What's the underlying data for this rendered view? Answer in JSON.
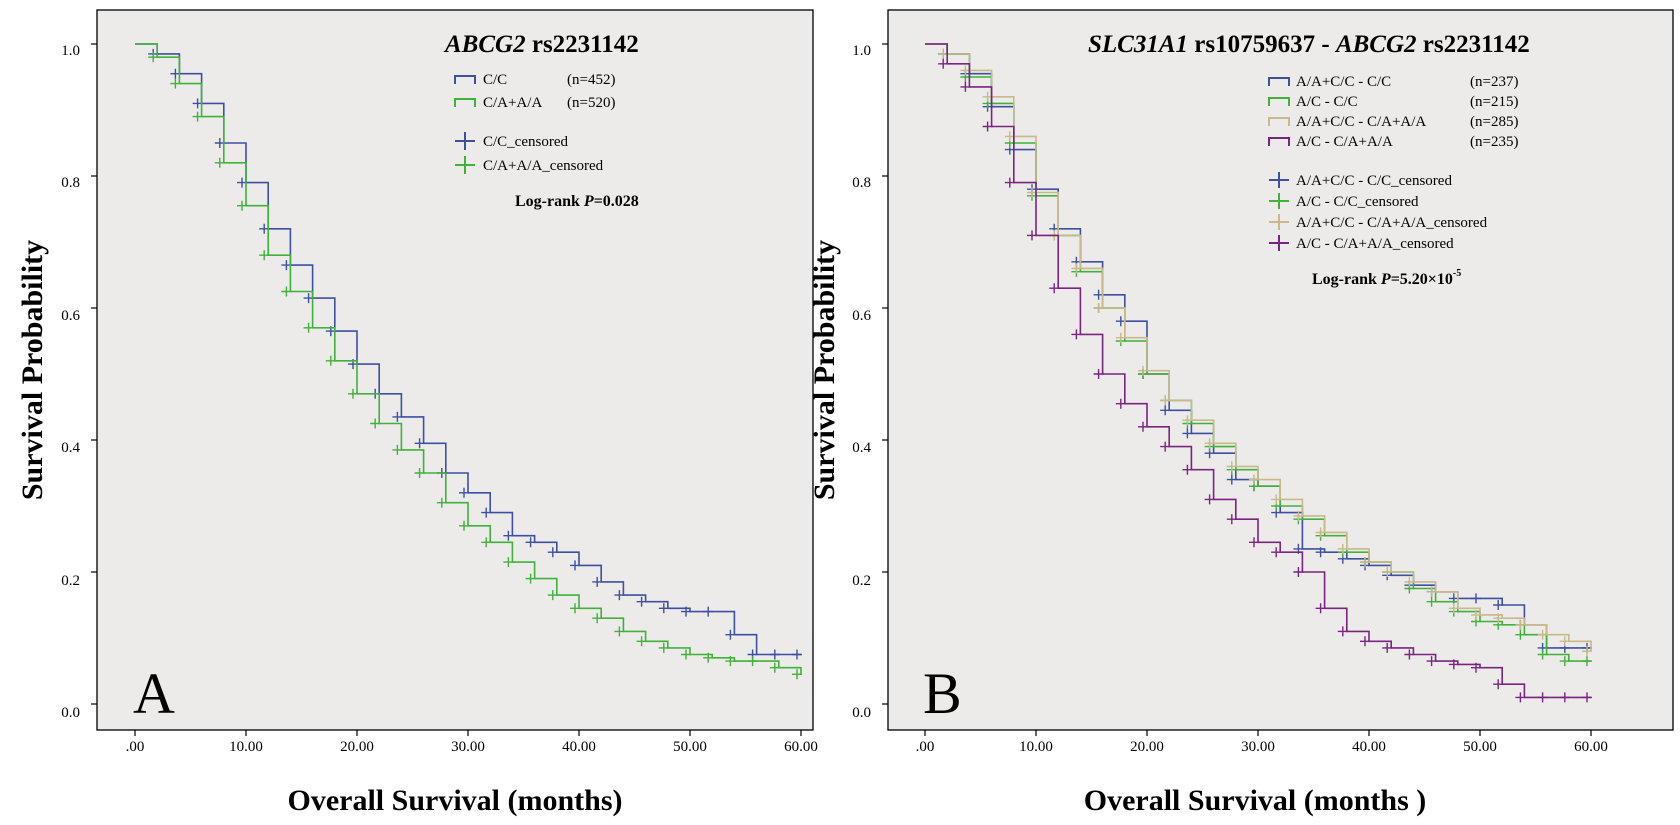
{
  "figure": "Kaplan-Meier survival curves",
  "chart_data": [
    {
      "type": "line",
      "panel_letter": "A",
      "title_italic": "ABCG2",
      "title_rest": " rs2231142",
      "xlabel": "Overall Survival (months)",
      "ylabel": "Survival Probability",
      "xlim": [
        0,
        60
      ],
      "ylim": [
        0,
        1.0
      ],
      "x_ticks": [
        ".00",
        "10.00",
        "20.00",
        "30.00",
        "40.00",
        "50.00",
        "60.00"
      ],
      "y_ticks": [
        "0.0",
        "0.2",
        "0.4",
        "0.6",
        "0.8",
        "1.0"
      ],
      "grid": false,
      "legend_position": "top-right",
      "legend": [
        {
          "label": "C/C",
          "n": "(n=452)",
          "kind": "line",
          "color": "#3d4fa3"
        },
        {
          "label": "C/A+A/A",
          "n": "(n=520)",
          "kind": "line",
          "color": "#3fb23a"
        },
        {
          "label": "C/C_censored",
          "n": "",
          "kind": "censor",
          "color": "#3d4fa3"
        },
        {
          "label": "C/A+A/A_censored",
          "n": "",
          "kind": "censor",
          "color": "#3fb23a"
        }
      ],
      "logrank_prefix": "Log-rank ",
      "logrank_p": "P",
      "logrank_value": "=0.028",
      "logrank_sup": "",
      "series": [
        {
          "name": "C/C",
          "color": "#3d4fa3",
          "x": [
            0,
            2,
            4,
            6,
            8,
            10,
            12,
            14,
            16,
            18,
            20,
            22,
            24,
            26,
            28,
            30,
            32,
            34,
            36,
            38,
            40,
            42,
            44,
            46,
            48,
            50,
            52,
            54,
            56,
            58,
            60
          ],
          "y": [
            1.0,
            0.985,
            0.955,
            0.91,
            0.85,
            0.79,
            0.72,
            0.665,
            0.615,
            0.565,
            0.515,
            0.47,
            0.435,
            0.395,
            0.35,
            0.32,
            0.29,
            0.255,
            0.245,
            0.23,
            0.21,
            0.185,
            0.165,
            0.155,
            0.145,
            0.14,
            0.14,
            0.105,
            0.075,
            0.075,
            0.075
          ]
        },
        {
          "name": "C/A+A/A",
          "color": "#3fb23a",
          "x": [
            0,
            2,
            4,
            6,
            8,
            10,
            12,
            14,
            16,
            18,
            20,
            22,
            24,
            26,
            28,
            30,
            32,
            34,
            36,
            38,
            40,
            42,
            44,
            46,
            48,
            50,
            52,
            54,
            56,
            58,
            60
          ],
          "y": [
            1.0,
            0.98,
            0.94,
            0.89,
            0.82,
            0.755,
            0.68,
            0.625,
            0.57,
            0.52,
            0.47,
            0.425,
            0.385,
            0.35,
            0.305,
            0.27,
            0.245,
            0.215,
            0.19,
            0.165,
            0.145,
            0.13,
            0.11,
            0.095,
            0.085,
            0.075,
            0.07,
            0.065,
            0.065,
            0.055,
            0.045
          ]
        }
      ]
    },
    {
      "type": "line",
      "panel_letter": "B",
      "title_italic": "SLC31A1",
      "title_rest": " rs10759637 - ",
      "title_italic2": "ABCG2",
      "title_rest2": " rs2231142",
      "xlabel": "Overall Survival (months )",
      "ylabel": "Survival Probability",
      "xlim": [
        0,
        60
      ],
      "ylim": [
        0,
        1.0
      ],
      "x_ticks": [
        ".00",
        "10.00",
        "20.00",
        "30.00",
        "40.00",
        "50.00",
        "60.00"
      ],
      "y_ticks": [
        "0.0",
        "0.2",
        "0.4",
        "0.6",
        "0.8",
        "1.0"
      ],
      "grid": false,
      "legend_position": "top-right",
      "legend": [
        {
          "label": "A/A+C/C - C/C",
          "n": "(n=237)",
          "kind": "line",
          "color": "#3d4fa3"
        },
        {
          "label": "A/C          - C/C",
          "n": "(n=215)",
          "kind": "line",
          "color": "#3fb23a"
        },
        {
          "label": "A/A+C/C - C/A+A/A",
          "n": "(n=285)",
          "kind": "line",
          "color": "#c8b88a"
        },
        {
          "label": "A/C          - C/A+A/A",
          "n": "(n=235)",
          "kind": "line",
          "color": "#7b2381"
        },
        {
          "label": "A/A+C/C - C/C_censored",
          "n": "",
          "kind": "censor",
          "color": "#3d4fa3"
        },
        {
          "label": "A/C          - C/C_censored",
          "n": "",
          "kind": "censor",
          "color": "#3fb23a"
        },
        {
          "label": "A/A+C/C - C/A+A/A_censored",
          "n": "",
          "kind": "censor",
          "color": "#c8b88a"
        },
        {
          "label": "A/C          - C/A+A/A_censored",
          "n": "",
          "kind": "censor",
          "color": "#7b2381"
        }
      ],
      "logrank_prefix": "Log-rank ",
      "logrank_p": "P",
      "logrank_value": "=5.20×10",
      "logrank_sup": "-5",
      "series": [
        {
          "name": "A/A+C/C - C/C",
          "color": "#3d4fa3",
          "x": [
            0,
            2,
            4,
            6,
            8,
            10,
            12,
            14,
            16,
            18,
            20,
            22,
            24,
            26,
            28,
            30,
            32,
            34,
            36,
            38,
            40,
            42,
            44,
            46,
            48,
            50,
            52,
            54,
            56,
            58,
            60
          ],
          "y": [
            1.0,
            0.985,
            0.955,
            0.905,
            0.84,
            0.78,
            0.72,
            0.67,
            0.62,
            0.58,
            0.5,
            0.445,
            0.41,
            0.38,
            0.34,
            0.33,
            0.29,
            0.235,
            0.23,
            0.22,
            0.21,
            0.195,
            0.18,
            0.17,
            0.16,
            0.16,
            0.15,
            0.12,
            0.085,
            0.085,
            0.085
          ]
        },
        {
          "name": "A/C - C/C",
          "color": "#3fb23a",
          "x": [
            0,
            2,
            4,
            6,
            8,
            10,
            12,
            14,
            16,
            18,
            20,
            22,
            24,
            26,
            28,
            30,
            32,
            34,
            36,
            38,
            40,
            42,
            44,
            46,
            48,
            50,
            52,
            54,
            56,
            58,
            60
          ],
          "y": [
            1.0,
            0.985,
            0.95,
            0.91,
            0.85,
            0.77,
            0.71,
            0.655,
            0.6,
            0.55,
            0.5,
            0.46,
            0.425,
            0.39,
            0.355,
            0.33,
            0.3,
            0.28,
            0.255,
            0.23,
            0.215,
            0.2,
            0.175,
            0.155,
            0.14,
            0.125,
            0.12,
            0.105,
            0.075,
            0.065,
            0.065
          ]
        },
        {
          "name": "A/A+C/C - C/A+A/A",
          "color": "#c8b88a",
          "x": [
            0,
            2,
            4,
            6,
            8,
            10,
            12,
            14,
            16,
            18,
            20,
            22,
            24,
            26,
            28,
            30,
            32,
            34,
            36,
            38,
            40,
            42,
            44,
            46,
            48,
            50,
            52,
            54,
            56,
            58,
            60
          ],
          "y": [
            1.0,
            0.985,
            0.96,
            0.92,
            0.86,
            0.775,
            0.71,
            0.66,
            0.6,
            0.555,
            0.505,
            0.46,
            0.43,
            0.395,
            0.36,
            0.34,
            0.31,
            0.285,
            0.26,
            0.235,
            0.215,
            0.2,
            0.185,
            0.17,
            0.145,
            0.135,
            0.13,
            0.12,
            0.105,
            0.095,
            0.08
          ]
        },
        {
          "name": "A/C - C/A+A/A",
          "color": "#7b2381",
          "x": [
            0,
            2,
            4,
            6,
            8,
            10,
            12,
            14,
            16,
            18,
            20,
            22,
            24,
            26,
            28,
            30,
            32,
            34,
            36,
            38,
            40,
            42,
            44,
            46,
            48,
            50,
            52,
            54,
            56,
            58,
            60
          ],
          "y": [
            1.0,
            0.97,
            0.935,
            0.875,
            0.79,
            0.71,
            0.63,
            0.56,
            0.5,
            0.455,
            0.42,
            0.39,
            0.355,
            0.31,
            0.28,
            0.245,
            0.23,
            0.2,
            0.145,
            0.11,
            0.095,
            0.085,
            0.075,
            0.065,
            0.06,
            0.055,
            0.03,
            0.01,
            0.01,
            0.01,
            0.01
          ]
        }
      ]
    }
  ]
}
